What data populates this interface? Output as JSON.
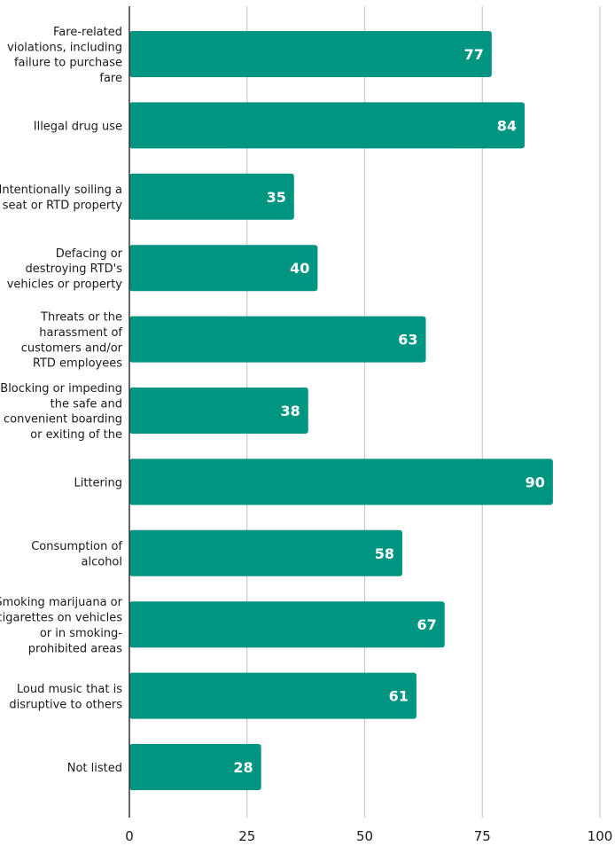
{
  "colors": {
    "bar": "#009580",
    "grid": "#c8c8c8",
    "axis": "#333333",
    "value_text": "#ffffff",
    "label_text": "#1a1a1a"
  },
  "chart_data": {
    "type": "bar",
    "orientation": "horizontal",
    "title": "",
    "xlabel": "",
    "ylabel": "",
    "xlim": [
      0,
      100
    ],
    "x_ticks": [
      0,
      25,
      50,
      75,
      100
    ],
    "grid": "vertical",
    "data_labels": "inside-end",
    "categories": [
      "Fare-related violations, including failure to purchase fare",
      "Illegal drug use",
      "Intentionally soiling a seat or RTD property",
      "Defacing or destroying RTD's vehicles or property",
      "Threats or the harassment of customers and/or RTD employees",
      "Blocking or impeding the safe and convenient boarding or exiting of the",
      "Littering",
      "Consumption of alcohol",
      "Smoking marijuana or cigarettes on vehicles or in smoking-prohibited areas",
      "Loud music that is disruptive to others",
      "Not listed"
    ],
    "category_lines": [
      [
        "Fare-related",
        "violations, including",
        "failure to purchase",
        "fare"
      ],
      [
        "Illegal drug use"
      ],
      [
        "Intentionally soiling a",
        "seat or RTD property"
      ],
      [
        "Defacing or",
        "destroying RTD's",
        "vehicles or property"
      ],
      [
        "Threats or the",
        "harassment of",
        "customers and/or",
        "RTD employees"
      ],
      [
        "Blocking or impeding",
        "the safe and",
        "convenient boarding",
        "or exiting of the"
      ],
      [
        "Littering"
      ],
      [
        "Consumption of",
        "alcohol"
      ],
      [
        "Smoking marijuana or",
        "cigarettes on vehicles",
        "or in smoking-",
        "prohibited areas"
      ],
      [
        "Loud music that is",
        "disruptive to others"
      ],
      [
        "Not listed"
      ]
    ],
    "values": [
      77,
      84,
      35,
      40,
      63,
      38,
      90,
      58,
      67,
      61,
      28
    ]
  }
}
